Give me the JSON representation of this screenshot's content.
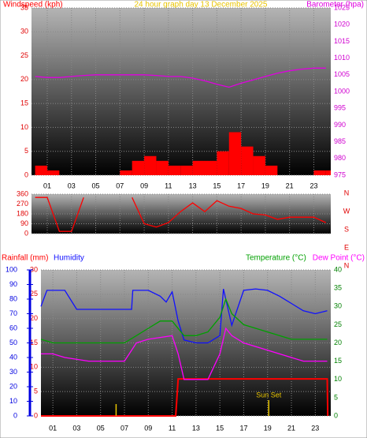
{
  "chart_data": [
    {
      "type": "line",
      "title": "24 hour graph day  13 December 2025",
      "title_color": "#e8c400",
      "xlim": [
        -0.3,
        24.4
      ],
      "xticks": [
        {
          "value": 1,
          "label": "01"
        },
        {
          "value": 3,
          "label": "03"
        },
        {
          "value": 5,
          "label": "05"
        },
        {
          "value": 7,
          "label": "07"
        },
        {
          "value": 9,
          "label": "09"
        },
        {
          "value": 11,
          "label": "11"
        },
        {
          "value": 13,
          "label": "13"
        },
        {
          "value": 15,
          "label": "15"
        },
        {
          "value": 17,
          "label": "17"
        },
        {
          "value": 19,
          "label": "19"
        },
        {
          "value": 21,
          "label": "21"
        },
        {
          "value": 23,
          "label": "23"
        }
      ],
      "ylim": [
        0,
        35
      ],
      "yticks": [
        0,
        5,
        10,
        15,
        20,
        25,
        30,
        35
      ],
      "ycolor": "#e00000",
      "y2lim": [
        975,
        1025
      ],
      "y2ticks": [
        975,
        980,
        985,
        990,
        995,
        1000,
        1005,
        1010,
        1015,
        1020,
        1025
      ],
      "y2color": "#d000d0",
      "grid": true,
      "series": [
        {
          "name": "Windspeed (kph)",
          "color": "#ff0000",
          "kind": "bar",
          "x": [
            0,
            1,
            2,
            3,
            4,
            5,
            6,
            7,
            8,
            9,
            10,
            11,
            12,
            13,
            14,
            15,
            16,
            17,
            18,
            19,
            20,
            21,
            22,
            23,
            24
          ],
          "values": [
            2,
            1,
            0,
            0,
            0,
            0,
            0,
            1,
            3,
            4,
            3,
            2,
            2,
            3,
            3,
            5,
            9,
            6,
            4,
            2,
            0,
            0,
            0,
            1,
            1
          ]
        },
        {
          "name": "Barometer (hpa)",
          "color": "#e000e0",
          "axis": "y2",
          "x": [
            0,
            1,
            2,
            3,
            4,
            5,
            6,
            7,
            8,
            9,
            10,
            11,
            12,
            13,
            14,
            15,
            16,
            17,
            18,
            19,
            20,
            21,
            22,
            23,
            24
          ],
          "values": [
            1004.5,
            1004.2,
            1004.2,
            1004.5,
            1004.8,
            1005,
            1005,
            1005,
            1005,
            1005,
            1004.8,
            1004.5,
            1004.5,
            1004,
            1003.2,
            1002.2,
            1001.3,
            1002.5,
            1003.5,
            1004.5,
            1005.5,
            1006.2,
            1006.7,
            1007,
            1007
          ]
        }
      ]
    },
    {
      "type": "line",
      "xlim": [
        -0.3,
        24.4
      ],
      "xticks": [
        1,
        3,
        5,
        7,
        9,
        11,
        13,
        15,
        17,
        19,
        21,
        23
      ],
      "ylim": [
        0,
        360
      ],
      "yticks": [
        0,
        90,
        180,
        270,
        360
      ],
      "ycolor": "#e00000",
      "y2lim": [
        0,
        360
      ],
      "y2ticks": [
        {
          "value": 360,
          "label": "N"
        },
        {
          "value": 270,
          "label": "W"
        },
        {
          "value": 180,
          "label": "S"
        },
        {
          "value": 90,
          "label": "E"
        },
        {
          "value": 0,
          "label": "N"
        }
      ],
      "y2color": "#e00000",
      "grid": true,
      "series": [
        {
          "color": "#ff0000",
          "x": [
            0,
            1,
            2,
            3,
            4,
            5,
            6,
            7,
            8,
            9,
            10,
            11,
            12,
            13,
            14,
            15,
            16,
            17,
            18,
            19,
            20,
            21,
            22,
            23,
            24
          ],
          "values": [
            330,
            330,
            20,
            20,
            330,
            null,
            null,
            null,
            330,
            90,
            60,
            100,
            200,
            280,
            200,
            300,
            250,
            230,
            180,
            170,
            130,
            150,
            150,
            150,
            100
          ]
        }
      ]
    },
    {
      "type": "line",
      "xlim": [
        0,
        24.3
      ],
      "xticks": [
        {
          "value": 1,
          "label": "01"
        },
        {
          "value": 3,
          "label": "03"
        },
        {
          "value": 5,
          "label": "05"
        },
        {
          "value": 7,
          "label": "07"
        },
        {
          "value": 9,
          "label": "09"
        },
        {
          "value": 11,
          "label": "11"
        },
        {
          "value": 13,
          "label": "13"
        },
        {
          "value": 15,
          "label": "15"
        },
        {
          "value": 17,
          "label": "17"
        },
        {
          "value": 19,
          "label": "19"
        },
        {
          "value": 21,
          "label": "21"
        },
        {
          "value": 23,
          "label": "23"
        }
      ],
      "ylim": [
        0,
        30
      ],
      "yticks": [
        0,
        5,
        10,
        15,
        20,
        25,
        30
      ],
      "ycolor": "#e00000",
      "y3lim": [
        0,
        100
      ],
      "y3ticks": [
        0,
        10,
        20,
        30,
        40,
        50,
        60,
        70,
        80,
        90,
        100
      ],
      "y3color": "#0000e0",
      "y2lim": [
        0,
        40
      ],
      "y2ticks": [
        0,
        5,
        10,
        15,
        20,
        25,
        30,
        35,
        40
      ],
      "y2color": "#008000",
      "grid": true,
      "series": [
        {
          "name": "Rainfall (mm)",
          "color": "#ff0000",
          "x": [
            0,
            11.3,
            11.5,
            24,
            24.05
          ],
          "values": [
            0,
            0,
            7.6,
            7.6,
            0
          ]
        },
        {
          "name": "Humidity",
          "color": "#1010ff",
          "axis": "y3",
          "x": [
            0,
            0.5,
            2,
            3,
            7.6,
            7.7,
            9,
            10,
            10.5,
            11,
            11.5,
            12,
            13,
            14,
            15,
            15.3,
            16,
            17,
            18,
            19,
            20,
            21,
            22,
            23,
            24
          ],
          "values": [
            75,
            86,
            86,
            73,
            73,
            86,
            86,
            82,
            78,
            85,
            65,
            52,
            50,
            50,
            55,
            87,
            62,
            86,
            87,
            86,
            82,
            77,
            72,
            70,
            72
          ]
        },
        {
          "name": "Temperature (°C)",
          "color": "#00a000",
          "axis": "y2",
          "x": [
            0,
            1,
            7,
            8,
            9,
            10,
            11,
            12,
            13,
            14,
            15,
            15.5,
            16,
            17,
            18,
            19,
            20,
            21,
            24
          ],
          "values": [
            21,
            20,
            20,
            22,
            24,
            26,
            26,
            22,
            22,
            23,
            27,
            32,
            28,
            25,
            24,
            23,
            22,
            21,
            21
          ]
        },
        {
          "name": "Dew Point (°C)",
          "color": "#ff00ff",
          "axis": "y2",
          "x": [
            0,
            1,
            2,
            4,
            7,
            8,
            9,
            10,
            11,
            11.5,
            12,
            13,
            14,
            15,
            15.5,
            16,
            17,
            18,
            19,
            20,
            21,
            22,
            24
          ],
          "values": [
            17,
            17,
            16,
            15,
            15,
            20,
            21,
            21.5,
            22,
            17,
            10,
            10,
            10,
            17,
            24,
            22,
            20,
            19,
            18,
            17,
            16,
            15,
            15
          ]
        }
      ],
      "annotations": [
        {
          "x": 6.3
        },
        {
          "x": 19.1,
          "label": "Sun Set"
        }
      ]
    }
  ]
}
